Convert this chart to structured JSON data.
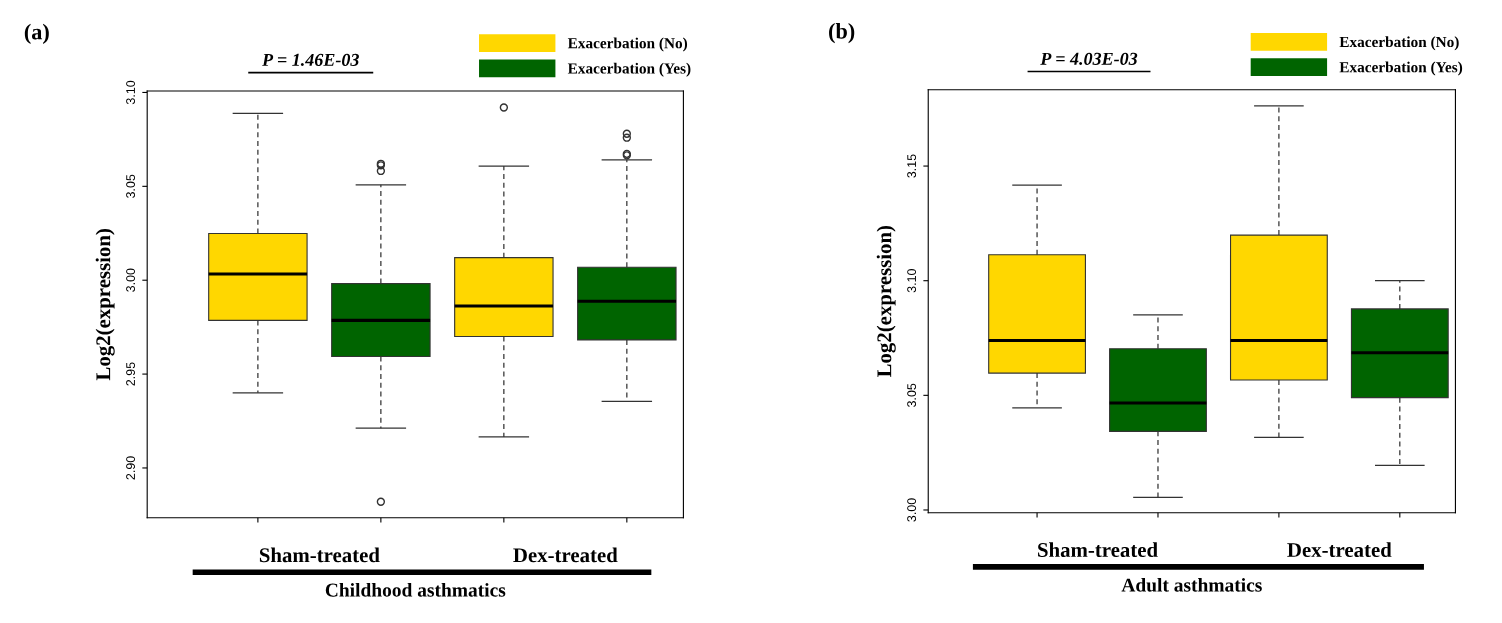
{
  "chart_data": [
    {
      "type": "box",
      "title": "(a)",
      "xlabel": "Childhood asthmatics",
      "ylabel": "Log2(expression)",
      "categories": [
        "Sham-treated",
        "Dex-treated"
      ],
      "ylim": [
        2.8735,
        3.1008
      ],
      "yticks": [
        {
          "value": 2.9,
          "label": "2.90"
        },
        {
          "value": 2.95,
          "label": "2.95"
        },
        {
          "value": 3.0,
          "label": "3.00"
        },
        {
          "value": 3.05,
          "label": "3.05"
        },
        {
          "value": 3.1,
          "label": "3.10"
        }
      ],
      "series": [
        {
          "name": "Exacerbation (No)",
          "color": "#ffd700",
          "boxes": [
            {
              "low": 2.94,
              "q1": 2.9786,
              "median": 3.0033,
              "q3": 3.0249,
              "high": 3.0888
            },
            {
              "low": 2.9165,
              "q1": 2.97,
              "median": 2.9863,
              "q3": 3.012,
              "high": 3.0608,
              "outliers": [
                3.092
              ]
            }
          ]
        },
        {
          "name": "Exacerbation (Yes)",
          "color": "#006400",
          "boxes": [
            {
              "low": 2.9212,
              "q1": 2.9594,
              "median": 2.9786,
              "q3": 2.9982,
              "high": 3.0508,
              "outliers": [
                3.062,
                3.0612,
                3.0582,
                2.882
              ]
            },
            {
              "low": 2.9355,
              "q1": 2.9682,
              "median": 2.9888,
              "q3": 3.0069,
              "high": 3.0641,
              "outliers": [
                3.078,
                3.0759,
                3.0673,
                3.0665
              ]
            }
          ]
        }
      ],
      "legend": "top right",
      "annotations": [
        "P = 1.46E-03"
      ]
    },
    {
      "type": "box",
      "title": "(b)",
      "xlabel": "Adult asthmatics",
      "ylabel": "Log2(expression)",
      "categories": [
        "Sham-treated",
        "Dex-treated"
      ],
      "ylim": [
        2.9988,
        3.1833
      ],
      "yticks": [
        {
          "value": 3.0,
          "label": "3.00"
        },
        {
          "value": 3.05,
          "label": "3.05"
        },
        {
          "value": 3.1,
          "label": "3.10"
        },
        {
          "value": 3.15,
          "label": "3.15"
        }
      ],
      "series": [
        {
          "name": "Exacerbation (No)",
          "color": "#ffd700",
          "boxes": [
            {
              "low": 3.0445,
              "q1": 3.0597,
              "median": 3.0739,
              "q3": 3.1113,
              "high": 3.1417
            },
            {
              "low": 3.0317,
              "q1": 3.0567,
              "median": 3.0739,
              "q3": 3.1199,
              "high": 3.1762
            }
          ]
        },
        {
          "name": "Exacerbation (Yes)",
          "color": "#006400",
          "boxes": [
            {
              "low": 3.0055,
              "q1": 3.0343,
              "median": 3.0467,
              "q3": 3.0703,
              "high": 3.0851
            },
            {
              "low": 3.0194,
              "q1": 3.049,
              "median": 3.0686,
              "q3": 3.0877,
              "high": 3.1
            }
          ]
        }
      ],
      "legend": "top right",
      "annotations": [
        "P = 4.03E-03"
      ]
    }
  ]
}
